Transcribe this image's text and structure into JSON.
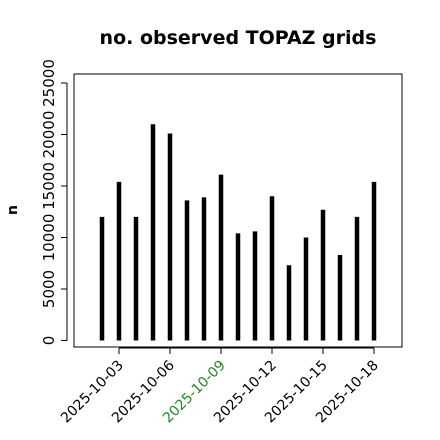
{
  "chart_data": {
    "type": "bar",
    "title": "no. observed TOPAZ grids",
    "xlabel": "",
    "ylabel": "n",
    "ylim": [
      0,
      26000
    ],
    "yticks": [
      0,
      5000,
      10000,
      15000,
      20000,
      25000
    ],
    "ytick_labels": [
      "0",
      "5000",
      "10000",
      "15000",
      "20000",
      "25000"
    ],
    "categories": [
      "2025-10-02",
      "2025-10-03",
      "2025-10-04",
      "2025-10-05",
      "2025-10-06",
      "2025-10-07",
      "2025-10-08",
      "2025-10-09",
      "2025-10-10",
      "2025-10-11",
      "2025-10-12",
      "2025-10-13",
      "2025-10-14",
      "2025-10-15",
      "2025-10-16",
      "2025-10-17",
      "2025-10-18"
    ],
    "values": [
      12000,
      15400,
      12000,
      21000,
      20100,
      13600,
      13900,
      16100,
      10400,
      10600,
      14000,
      7300,
      10000,
      12700,
      8300,
      12000,
      15400
    ],
    "xticks": [
      "2025-10-03",
      "2025-10-06",
      "2025-10-09",
      "2025-10-12",
      "2025-10-15",
      "2025-10-18"
    ],
    "highlight_tick": "2025-10-09",
    "colors": {
      "bar": "#000000",
      "tick_text": "#000000",
      "highlight_text": "#228b22",
      "frame": "#000000"
    },
    "grid": false,
    "legend": "none"
  }
}
